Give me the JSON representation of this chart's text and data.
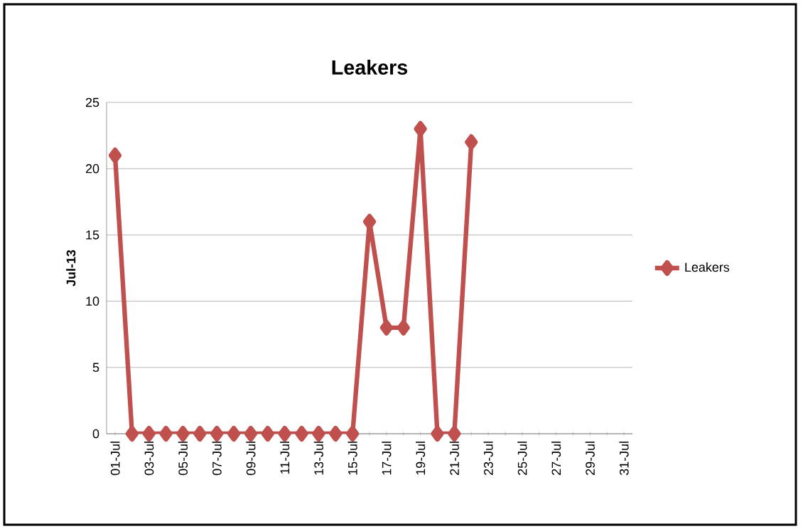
{
  "chart_data": {
    "type": "line",
    "title": "Leakers",
    "ylabel": "Jul-13",
    "categories": [
      "01-Jul",
      null,
      "03-Jul",
      null,
      "05-Jul",
      null,
      "07-Jul",
      null,
      "09-Jul",
      null,
      "11-Jul",
      null,
      "13-Jul",
      null,
      "15-Jul",
      null,
      "17-Jul",
      null,
      "19-Jul",
      null,
      "21-Jul",
      null,
      "23-Jul",
      null,
      "25-Jul",
      null,
      "27-Jul",
      null,
      "29-Jul",
      null,
      "31-Jul"
    ],
    "series": [
      {
        "name": "Leakers",
        "color": "#c0504d",
        "values": [
          21,
          0,
          0,
          0,
          0,
          0,
          0,
          0,
          0,
          0,
          0,
          0,
          0,
          0,
          0,
          16,
          8,
          8,
          23,
          0,
          0,
          22,
          null,
          null,
          null,
          null,
          null,
          null,
          null,
          null,
          null
        ]
      }
    ],
    "ylim": [
      0,
      25
    ],
    "yticks": [
      0,
      5,
      10,
      15,
      20,
      25
    ],
    "grid": "y",
    "legend": "right",
    "marker": "diamond",
    "line_style": "solid"
  }
}
